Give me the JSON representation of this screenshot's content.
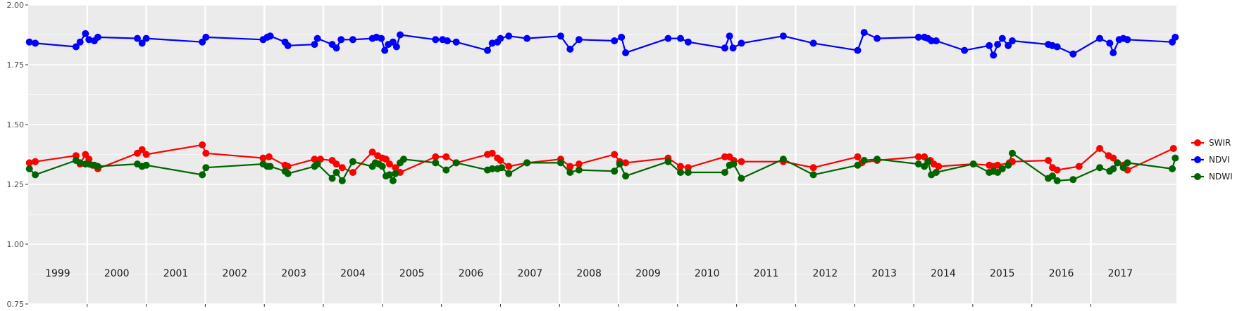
{
  "chart_data": {
    "type": "line",
    "title": "",
    "xlabel": "",
    "ylabel": "",
    "ylim": [
      0.75,
      2.0
    ],
    "yticks": [
      "0.75",
      "1.00",
      "1.25",
      "1.50",
      "1.75",
      "2.00"
    ],
    "xlim": [
      1998.5,
      2017.95
    ],
    "years": [
      "1999",
      "2000",
      "2001",
      "2002",
      "2003",
      "2004",
      "2005",
      "2006",
      "2007",
      "2008",
      "2009",
      "2010",
      "2011",
      "2012",
      "2013",
      "2014",
      "2015",
      "2016",
      "2017"
    ],
    "grid": true,
    "panel_background": "#ebebeb",
    "legend_position": "right",
    "series": [
      {
        "name": "SWIR",
        "color": "#ff0000",
        "points": [
          [
            1998.52,
            1.34
          ],
          [
            1998.62,
            1.345
          ],
          [
            1999.31,
            1.37
          ],
          [
            1999.38,
            1.335
          ],
          [
            1999.47,
            1.375
          ],
          [
            1999.53,
            1.355
          ],
          [
            1999.59,
            1.33
          ],
          [
            1999.68,
            1.315
          ],
          [
            2000.35,
            1.38
          ],
          [
            2000.43,
            1.395
          ],
          [
            2000.5,
            1.375
          ],
          [
            2001.45,
            1.415
          ],
          [
            2001.51,
            1.38
          ],
          [
            2002.48,
            1.36
          ],
          [
            2002.58,
            1.365
          ],
          [
            2002.85,
            1.33
          ],
          [
            2002.9,
            1.325
          ],
          [
            2003.35,
            1.355
          ],
          [
            2003.45,
            1.355
          ],
          [
            2003.65,
            1.35
          ],
          [
            2003.72,
            1.335
          ],
          [
            2003.82,
            1.32
          ],
          [
            2004.0,
            1.3
          ],
          [
            2004.33,
            1.385
          ],
          [
            2004.42,
            1.37
          ],
          [
            2004.5,
            1.36
          ],
          [
            2004.56,
            1.355
          ],
          [
            2004.62,
            1.335
          ],
          [
            2004.72,
            1.32
          ],
          [
            2004.8,
            1.3
          ],
          [
            2005.4,
            1.365
          ],
          [
            2005.58,
            1.365
          ],
          [
            2005.75,
            1.34
          ],
          [
            2006.28,
            1.375
          ],
          [
            2006.36,
            1.38
          ],
          [
            2006.45,
            1.36
          ],
          [
            2006.5,
            1.35
          ],
          [
            2006.64,
            1.325
          ],
          [
            2006.95,
            1.34
          ],
          [
            2007.52,
            1.355
          ],
          [
            2007.68,
            1.325
          ],
          [
            2007.83,
            1.335
          ],
          [
            2008.43,
            1.375
          ],
          [
            2008.52,
            1.345
          ],
          [
            2008.62,
            1.34
          ],
          [
            2009.34,
            1.36
          ],
          [
            2009.55,
            1.325
          ],
          [
            2009.68,
            1.32
          ],
          [
            2010.3,
            1.365
          ],
          [
            2010.38,
            1.365
          ],
          [
            2010.45,
            1.35
          ],
          [
            2010.58,
            1.345
          ],
          [
            2011.29,
            1.345
          ],
          [
            2011.8,
            1.32
          ],
          [
            2012.55,
            1.365
          ],
          [
            2012.62,
            1.34
          ],
          [
            2012.88,
            1.35
          ],
          [
            2013.58,
            1.365
          ],
          [
            2013.68,
            1.365
          ],
          [
            2013.78,
            1.35
          ],
          [
            2013.84,
            1.335
          ],
          [
            2013.92,
            1.325
          ],
          [
            2014.51,
            1.335
          ],
          [
            2014.78,
            1.33
          ],
          [
            2014.85,
            1.325
          ],
          [
            2014.92,
            1.33
          ],
          [
            2015.12,
            1.34
          ],
          [
            2015.17,
            1.345
          ],
          [
            2015.78,
            1.35
          ],
          [
            2015.85,
            1.32
          ],
          [
            2015.93,
            1.31
          ],
          [
            2016.3,
            1.325
          ],
          [
            2016.65,
            1.4
          ],
          [
            2016.8,
            1.37
          ],
          [
            2016.88,
            1.36
          ],
          [
            2016.95,
            1.34
          ],
          [
            2017.05,
            1.33
          ],
          [
            2017.12,
            1.31
          ],
          [
            2017.9,
            1.4
          ]
        ]
      },
      {
        "name": "NDVI",
        "color": "#0000ff",
        "points": [
          [
            1998.52,
            1.845
          ],
          [
            1998.62,
            1.84
          ],
          [
            1999.31,
            1.825
          ],
          [
            1999.38,
            1.845
          ],
          [
            1999.47,
            1.88
          ],
          [
            1999.53,
            1.855
          ],
          [
            1999.62,
            1.85
          ],
          [
            1999.68,
            1.865
          ],
          [
            2000.35,
            1.86
          ],
          [
            2000.43,
            1.84
          ],
          [
            2000.5,
            1.86
          ],
          [
            2001.45,
            1.845
          ],
          [
            2001.51,
            1.865
          ],
          [
            2002.48,
            1.855
          ],
          [
            2002.55,
            1.865
          ],
          [
            2002.6,
            1.87
          ],
          [
            2002.85,
            1.845
          ],
          [
            2002.9,
            1.83
          ],
          [
            2003.35,
            1.835
          ],
          [
            2003.4,
            1.86
          ],
          [
            2003.65,
            1.835
          ],
          [
            2003.72,
            1.82
          ],
          [
            2003.8,
            1.855
          ],
          [
            2004.0,
            1.855
          ],
          [
            2004.33,
            1.86
          ],
          [
            2004.4,
            1.865
          ],
          [
            2004.48,
            1.86
          ],
          [
            2004.54,
            1.81
          ],
          [
            2004.6,
            1.835
          ],
          [
            2004.68,
            1.845
          ],
          [
            2004.74,
            1.825
          ],
          [
            2004.8,
            1.875
          ],
          [
            2005.4,
            1.855
          ],
          [
            2005.52,
            1.855
          ],
          [
            2005.6,
            1.85
          ],
          [
            2005.75,
            1.845
          ],
          [
            2006.28,
            1.81
          ],
          [
            2006.36,
            1.84
          ],
          [
            2006.45,
            1.845
          ],
          [
            2006.5,
            1.86
          ],
          [
            2006.64,
            1.87
          ],
          [
            2006.95,
            1.86
          ],
          [
            2007.52,
            1.87
          ],
          [
            2007.68,
            1.815
          ],
          [
            2007.83,
            1.855
          ],
          [
            2008.43,
            1.85
          ],
          [
            2008.55,
            1.865
          ],
          [
            2008.62,
            1.8
          ],
          [
            2009.34,
            1.86
          ],
          [
            2009.55,
            1.86
          ],
          [
            2009.68,
            1.845
          ],
          [
            2010.3,
            1.82
          ],
          [
            2010.38,
            1.87
          ],
          [
            2010.44,
            1.82
          ],
          [
            2010.58,
            1.84
          ],
          [
            2011.29,
            1.87
          ],
          [
            2011.8,
            1.84
          ],
          [
            2012.55,
            1.81
          ],
          [
            2012.66,
            1.885
          ],
          [
            2012.88,
            1.86
          ],
          [
            2013.58,
            1.865
          ],
          [
            2013.68,
            1.865
          ],
          [
            2013.74,
            1.86
          ],
          [
            2013.8,
            1.85
          ],
          [
            2013.88,
            1.85
          ],
          [
            2014.36,
            1.81
          ],
          [
            2014.78,
            1.83
          ],
          [
            2014.85,
            1.79
          ],
          [
            2014.92,
            1.835
          ],
          [
            2015.0,
            1.86
          ],
          [
            2015.1,
            1.83
          ],
          [
            2015.17,
            1.85
          ],
          [
            2015.78,
            1.835
          ],
          [
            2015.85,
            1.83
          ],
          [
            2015.93,
            1.825
          ],
          [
            2016.2,
            1.795
          ],
          [
            2016.65,
            1.86
          ],
          [
            2016.82,
            1.84
          ],
          [
            2016.88,
            1.8
          ],
          [
            2016.98,
            1.855
          ],
          [
            2017.05,
            1.86
          ],
          [
            2017.12,
            1.855
          ],
          [
            2017.88,
            1.845
          ],
          [
            2017.93,
            1.865
          ]
        ]
      },
      {
        "name": "NDWI",
        "color": "#006400",
        "points": [
          [
            1998.52,
            1.315
          ],
          [
            1998.62,
            1.29
          ],
          [
            1999.31,
            1.35
          ],
          [
            1999.38,
            1.34
          ],
          [
            1999.47,
            1.335
          ],
          [
            1999.53,
            1.335
          ],
          [
            1999.62,
            1.33
          ],
          [
            1999.68,
            1.325
          ],
          [
            2000.35,
            1.335
          ],
          [
            2000.43,
            1.325
          ],
          [
            2000.5,
            1.33
          ],
          [
            2001.45,
            1.29
          ],
          [
            2001.51,
            1.32
          ],
          [
            2002.48,
            1.335
          ],
          [
            2002.55,
            1.325
          ],
          [
            2002.6,
            1.325
          ],
          [
            2002.85,
            1.305
          ],
          [
            2002.9,
            1.295
          ],
          [
            2003.35,
            1.325
          ],
          [
            2003.4,
            1.335
          ],
          [
            2003.65,
            1.275
          ],
          [
            2003.72,
            1.3
          ],
          [
            2003.82,
            1.265
          ],
          [
            2004.0,
            1.345
          ],
          [
            2004.33,
            1.325
          ],
          [
            2004.38,
            1.34
          ],
          [
            2004.44,
            1.335
          ],
          [
            2004.5,
            1.325
          ],
          [
            2004.56,
            1.285
          ],
          [
            2004.62,
            1.29
          ],
          [
            2004.68,
            1.265
          ],
          [
            2004.72,
            1.295
          ],
          [
            2004.8,
            1.34
          ],
          [
            2004.86,
            1.355
          ],
          [
            2005.4,
            1.34
          ],
          [
            2005.58,
            1.31
          ],
          [
            2005.75,
            1.34
          ],
          [
            2006.28,
            1.31
          ],
          [
            2006.36,
            1.315
          ],
          [
            2006.45,
            1.315
          ],
          [
            2006.52,
            1.32
          ],
          [
            2006.64,
            1.295
          ],
          [
            2006.95,
            1.34
          ],
          [
            2007.52,
            1.34
          ],
          [
            2007.68,
            1.3
          ],
          [
            2007.83,
            1.31
          ],
          [
            2008.43,
            1.305
          ],
          [
            2008.52,
            1.335
          ],
          [
            2008.62,
            1.285
          ],
          [
            2009.34,
            1.345
          ],
          [
            2009.55,
            1.3
          ],
          [
            2009.68,
            1.3
          ],
          [
            2010.3,
            1.3
          ],
          [
            2010.38,
            1.33
          ],
          [
            2010.45,
            1.335
          ],
          [
            2010.58,
            1.275
          ],
          [
            2011.29,
            1.355
          ],
          [
            2011.8,
            1.29
          ],
          [
            2012.55,
            1.33
          ],
          [
            2012.66,
            1.35
          ],
          [
            2012.88,
            1.355
          ],
          [
            2013.58,
            1.335
          ],
          [
            2013.68,
            1.325
          ],
          [
            2013.74,
            1.345
          ],
          [
            2013.8,
            1.29
          ],
          [
            2013.88,
            1.3
          ],
          [
            2014.51,
            1.335
          ],
          [
            2014.78,
            1.3
          ],
          [
            2014.85,
            1.305
          ],
          [
            2014.92,
            1.3
          ],
          [
            2015.0,
            1.315
          ],
          [
            2015.1,
            1.33
          ],
          [
            2015.17,
            1.38
          ],
          [
            2015.78,
            1.275
          ],
          [
            2015.85,
            1.285
          ],
          [
            2015.93,
            1.265
          ],
          [
            2016.2,
            1.27
          ],
          [
            2016.65,
            1.32
          ],
          [
            2016.82,
            1.305
          ],
          [
            2016.88,
            1.315
          ],
          [
            2016.95,
            1.34
          ],
          [
            2017.05,
            1.32
          ],
          [
            2017.12,
            1.34
          ],
          [
            2017.88,
            1.315
          ],
          [
            2017.93,
            1.36
          ]
        ]
      }
    ]
  }
}
